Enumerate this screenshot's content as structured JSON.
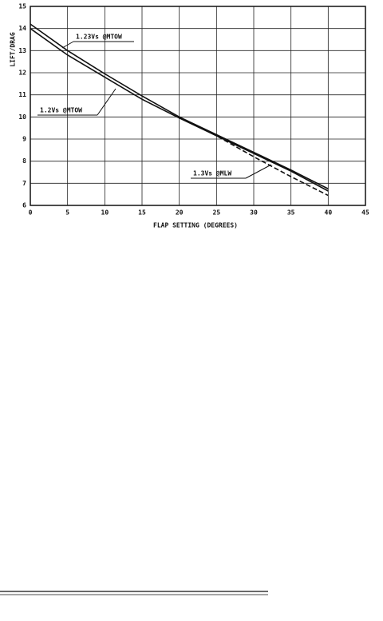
{
  "chart_data": {
    "type": "line",
    "y_label": "LIFT/DRAG",
    "x_label": "FLAP SETTING (DEGREES)",
    "x": [
      0,
      5,
      10,
      15,
      20,
      25,
      30,
      35,
      40
    ],
    "series": [
      {
        "name": "1.23Vs @MTOW",
        "color": "#111111",
        "dashed": false,
        "values": [
          14.2,
          13.0,
          11.95,
          10.95,
          10.0,
          9.2,
          8.4,
          7.6,
          6.75
        ]
      },
      {
        "name": "1.2Vs @MTOW",
        "color": "#111111",
        "dashed": false,
        "values": [
          14.0,
          12.8,
          11.8,
          10.8,
          9.95,
          9.15,
          8.35,
          7.55,
          6.65
        ]
      },
      {
        "name": "1.3Vs @MLW",
        "color": "#111111",
        "dashed": true,
        "values": [
          null,
          null,
          null,
          null,
          10.0,
          9.15,
          8.2,
          7.3,
          6.45
        ]
      }
    ],
    "xlim": [
      0,
      45
    ],
    "xticks": [
      0,
      5,
      10,
      15,
      20,
      25,
      30,
      35,
      40,
      45
    ],
    "ylim": [
      6,
      15
    ],
    "yticks": [
      6,
      7,
      8,
      9,
      10,
      11,
      12,
      13,
      14,
      15
    ],
    "grid": true
  }
}
